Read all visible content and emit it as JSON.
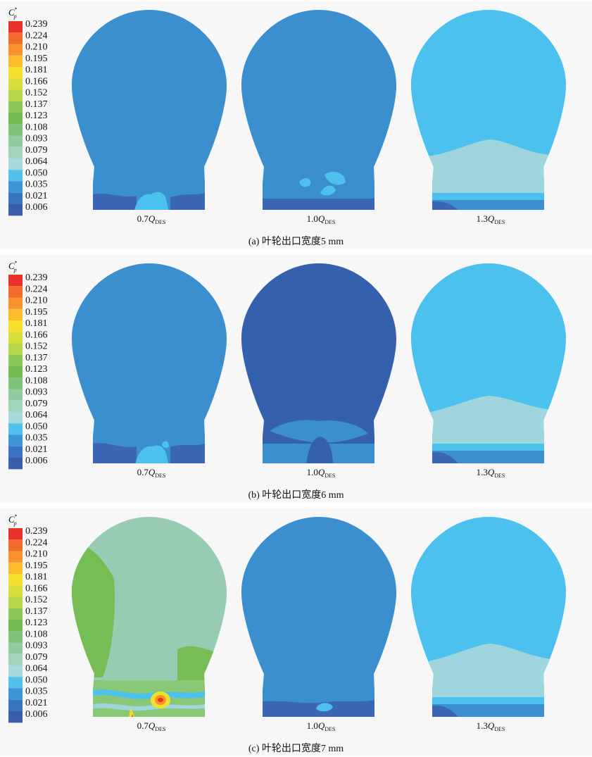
{
  "legend": {
    "symbol": "C",
    "superscript": "*",
    "subscript": "p",
    "levels": [
      "0.239",
      "0.224",
      "0.210",
      "0.195",
      "0.181",
      "0.166",
      "0.152",
      "0.137",
      "0.123",
      "0.108",
      "0.093",
      "0.079",
      "0.064",
      "0.050",
      "0.035",
      "0.021",
      "0.006"
    ],
    "colors": [
      "#e8312a",
      "#f26b2e",
      "#f7932f",
      "#fbbd2c",
      "#f5e02b",
      "#d7de3b",
      "#b8d64a",
      "#8cc759",
      "#74bd52",
      "#7fc27a",
      "#93cba0",
      "#a3d5bd",
      "#a6d8dc",
      "#52c0ec",
      "#3d95d7",
      "#3a73c1",
      "#3b5ea8"
    ]
  },
  "case_labels": [
    "0.7",
    "1.0",
    "1.3"
  ],
  "case_symbol": "Q",
  "case_subscript": "DES",
  "panels": [
    {
      "caption": "(a) 叶轮出口宽度5 mm"
    },
    {
      "caption": "(b) 叶轮出口宽度6 mm"
    },
    {
      "caption": "(c) 叶轮出口宽度7 mm"
    }
  ]
}
